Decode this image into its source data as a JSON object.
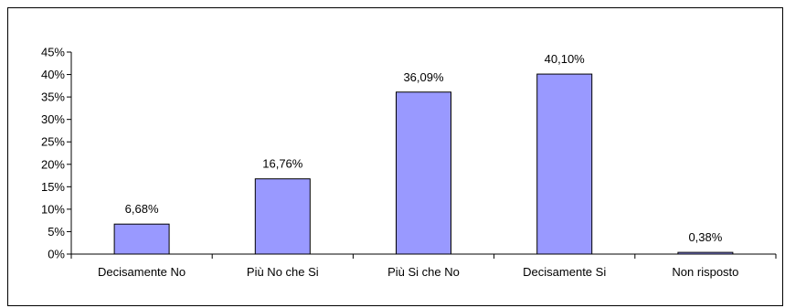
{
  "chart_data": {
    "type": "bar",
    "title": "",
    "xlabel": "",
    "ylabel": "",
    "categories": [
      "Decisamente No",
      "Più No che Si",
      "Più Si che No",
      "Decisamente Si",
      "Non risposto"
    ],
    "values": [
      6.68,
      16.76,
      36.09,
      40.1,
      0.38
    ],
    "data_labels": [
      "6,68%",
      "16,76%",
      "36,09%",
      "40,10%",
      "0,38%"
    ],
    "ylim": [
      0,
      45
    ],
    "yticks": [
      0,
      5,
      10,
      15,
      20,
      25,
      30,
      35,
      40,
      45
    ],
    "ytick_labels": [
      "0%",
      "5%",
      "10%",
      "15%",
      "20%",
      "25%",
      "30%",
      "35%",
      "40%",
      "45%"
    ],
    "grid": false,
    "legend": "none",
    "colors": {
      "bar_fill": "#9999ff",
      "bar_stroke": "#000000",
      "axis": "#000000"
    }
  }
}
